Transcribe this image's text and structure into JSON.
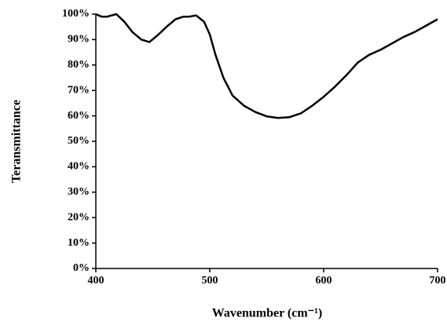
{
  "chart_data": {
    "type": "line",
    "x_label": "Wavenumber (cm⁻¹)",
    "y_label": "Teransmittance",
    "x": [
      400,
      405,
      410,
      418,
      425,
      432,
      440,
      447,
      455,
      462,
      470,
      477,
      482,
      488,
      495,
      500,
      505,
      512,
      520,
      530,
      540,
      550,
      560,
      570,
      580,
      590,
      600,
      610,
      620,
      630,
      640,
      650,
      660,
      670,
      680,
      690,
      700
    ],
    "series": [
      {
        "name": "Teransmittance",
        "color": "#000000",
        "values": [
          100,
          99,
          99,
          100,
          97,
          93,
          90,
          89,
          92,
          95,
          98,
          99,
          99,
          99.5,
          97,
          92,
          84,
          75,
          68,
          64,
          61.5,
          59.8,
          59.2,
          59.5,
          61,
          64,
          67.5,
          71.5,
          76,
          81,
          84,
          86,
          88.5,
          91,
          93,
          95.5,
          98
        ]
      }
    ],
    "xlim": [
      400,
      700
    ],
    "xticks": [
      400,
      500,
      600,
      700
    ],
    "ylim": [
      0,
      100
    ],
    "yticks": [
      {
        "value": 0,
        "label": "0%"
      },
      {
        "value": 10,
        "label": "10%"
      },
      {
        "value": 20,
        "label": "20%"
      },
      {
        "value": 30,
        "label": "30%"
      },
      {
        "value": 40,
        "label": "40%"
      },
      {
        "value": 50,
        "label": "50%"
      },
      {
        "value": 60,
        "label": "60%"
      },
      {
        "value": 70,
        "label": "70%"
      },
      {
        "value": 80,
        "label": "80%"
      },
      {
        "value": 90,
        "label": "90%"
      },
      {
        "value": 100,
        "label": "100%"
      }
    ],
    "grid": false
  }
}
